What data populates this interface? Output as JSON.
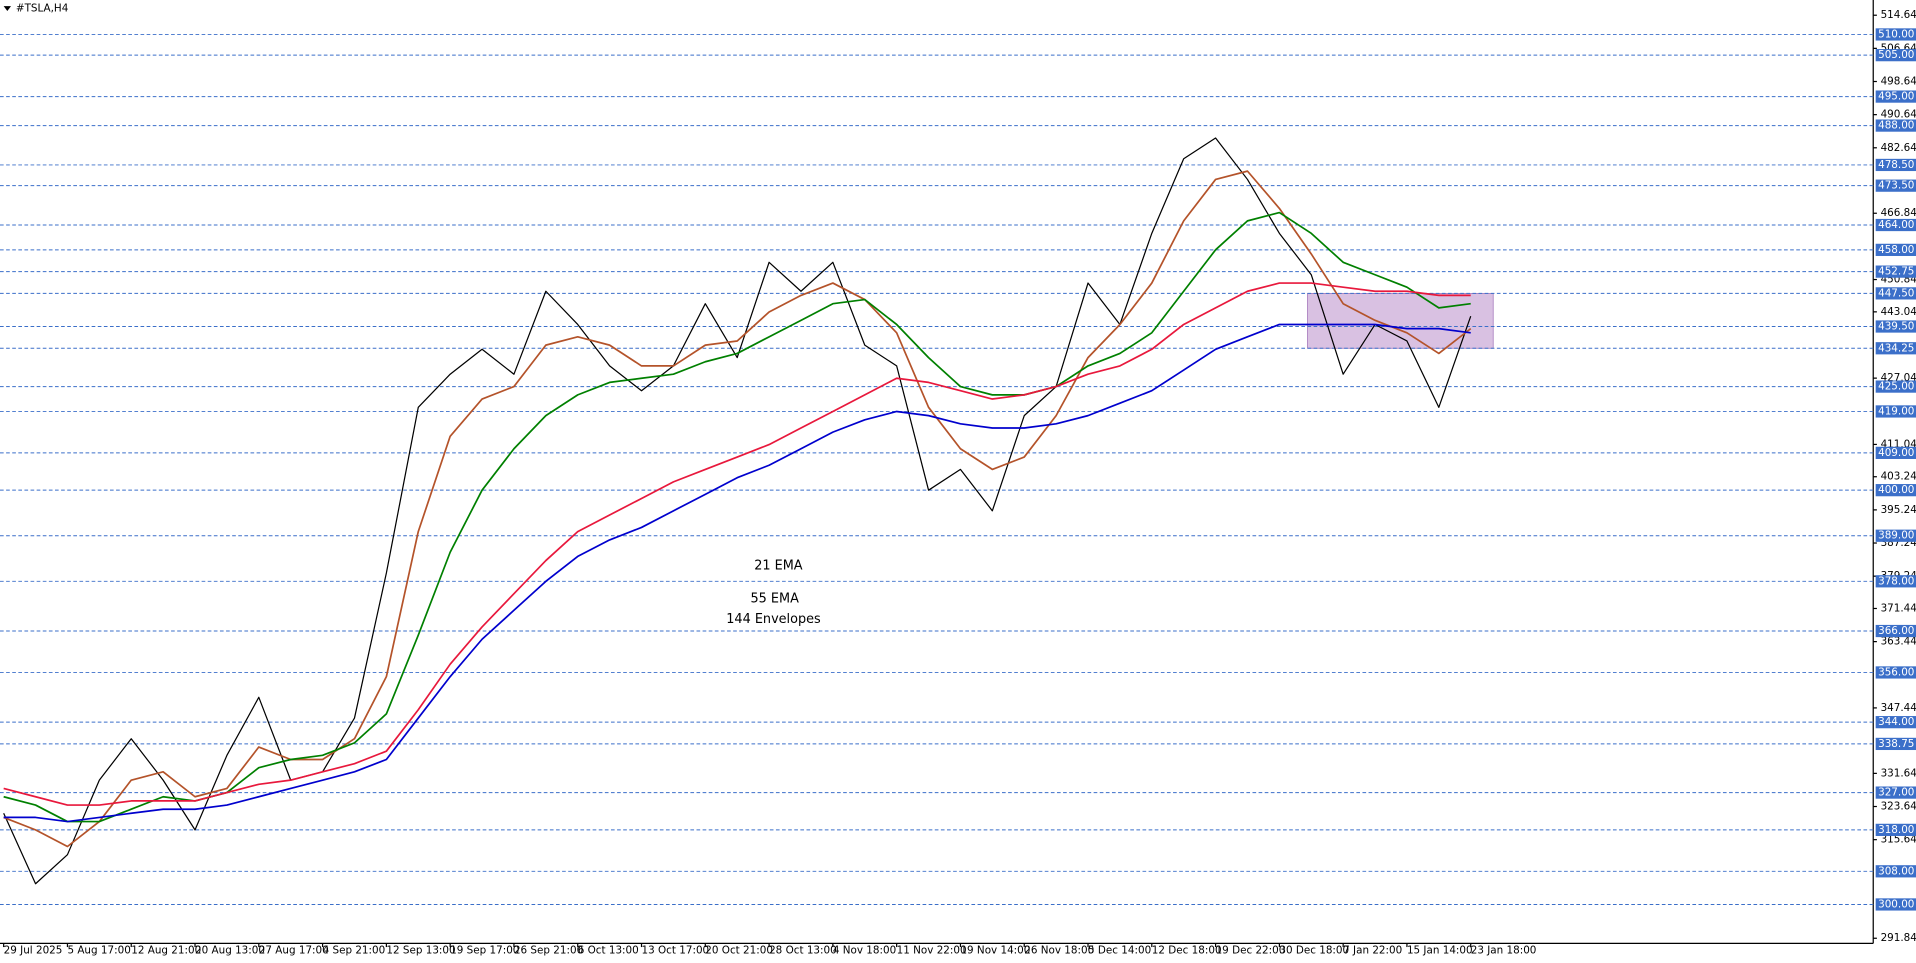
{
  "chart_data": {
    "type": "line",
    "title": "#TSLA,H4",
    "categories": [
      "29 Jul 2025",
      null,
      "5 Aug 17:00",
      null,
      "12 Aug 21:00",
      null,
      "20 Aug 13:00",
      null,
      "27 Aug 17:00",
      null,
      "4 Sep 21:00",
      null,
      "12 Sep 13:00",
      null,
      "19 Sep 17:00",
      null,
      "26 Sep 21:00",
      null,
      "6 Oct 13:00",
      null,
      "13 Oct 17:00",
      null,
      "20 Oct 21:00",
      null,
      "28 Oct 13:00",
      null,
      "4 Nov 18:00",
      null,
      "11 Nov 22:00",
      null,
      "19 Nov 14:00",
      null,
      "26 Nov 18:00",
      null,
      "5 Dec 14:00",
      null,
      "12 Dec 18:00",
      null,
      "19 Dec 22:00",
      null,
      "30 Dec 18:00",
      null,
      "7 Jan 22:00",
      null,
      "15 Jan 14:00",
      null,
      "23 Jan 18:00"
    ],
    "series": [
      {
        "color": "#000000",
        "values": [
          322,
          305,
          312,
          330,
          340,
          330,
          318,
          336,
          350,
          330,
          332,
          345,
          380,
          420,
          428,
          434,
          428,
          448,
          440,
          430,
          424,
          430,
          445,
          432,
          455,
          448,
          455,
          435,
          430,
          400,
          405,
          395,
          418,
          425,
          450,
          440,
          462,
          480,
          485,
          475,
          462,
          452,
          428,
          440,
          436,
          420,
          442
        ]
      },
      {
        "name": "21 EMA",
        "color": "#b4532a",
        "values": [
          321,
          318,
          314,
          320,
          330,
          332,
          326,
          328,
          338,
          335,
          335,
          340,
          355,
          390,
          413,
          422,
          425,
          435,
          437,
          435,
          430,
          430,
          435,
          436,
          443,
          447,
          450,
          446,
          438,
          420,
          410,
          405,
          408,
          418,
          432,
          440,
          450,
          465,
          475,
          477,
          468,
          457,
          445,
          441,
          438,
          433,
          439
        ]
      },
      {
        "name": "55 EMA",
        "color": "#008000",
        "values": [
          326,
          324,
          320,
          320,
          323,
          326,
          325,
          327,
          333,
          335,
          336,
          339,
          346,
          365,
          385,
          400,
          410,
          418,
          423,
          426,
          427,
          428,
          431,
          433,
          437,
          441,
          445,
          446,
          440,
          432,
          425,
          423,
          423,
          425,
          430,
          433,
          438,
          448,
          458,
          465,
          467,
          462,
          455,
          452,
          449,
          444,
          445
        ]
      },
      {
        "name": "144 Envelopes",
        "color": "#e8183c",
        "values": [
          328,
          326,
          324,
          324,
          325,
          325,
          325,
          327,
          329,
          330,
          332,
          334,
          337,
          347,
          358,
          367,
          375,
          383,
          390,
          394,
          398,
          402,
          405,
          408,
          411,
          415,
          419,
          423,
          427,
          426,
          424,
          422,
          423,
          425,
          428,
          430,
          434,
          440,
          444,
          448,
          450,
          450,
          449,
          448,
          448,
          447,
          447
        ]
      },
      {
        "color": "#0000cd",
        "values": [
          321,
          321,
          320,
          321,
          322,
          323,
          323,
          324,
          326,
          328,
          330,
          332,
          335,
          345,
          355,
          364,
          371,
          378,
          384,
          388,
          391,
          395,
          399,
          403,
          406,
          410,
          414,
          417,
          419,
          418,
          416,
          415,
          415,
          416,
          418,
          421,
          424,
          429,
          434,
          437,
          440,
          440,
          440,
          440,
          439,
          439,
          438
        ]
      }
    ],
    "ylim": [
      290.6,
      518.3
    ],
    "yticks": [
      514.64,
      506.64,
      498.64,
      490.64,
      482.64,
      466.84,
      450.84,
      443.04,
      427.04,
      411.04,
      403.24,
      395.24,
      387.24,
      379.24,
      371.44,
      363.44,
      347.44,
      331.64,
      323.64,
      315.64,
      291.84
    ],
    "levels": [
      {
        "value": 510,
        "label": "510.00"
      },
      {
        "value": 505,
        "label": "505.00"
      },
      {
        "value": 495,
        "label": "495.00"
      },
      {
        "value": 488,
        "label": "488.00"
      },
      {
        "value": 478.5,
        "label": "478.50"
      },
      {
        "value": 473.5,
        "label": "473.50"
      },
      {
        "value": 464,
        "label": "464.00"
      },
      {
        "value": 458,
        "label": "458.00"
      },
      {
        "value": 452.75,
        "label": "452.75"
      },
      {
        "value": 447.5,
        "label": "447.50"
      },
      {
        "value": 439.5,
        "label": "439.50"
      },
      {
        "value": 434.25,
        "label": "434.25"
      },
      {
        "value": 425,
        "label": "425.00"
      },
      {
        "value": 419,
        "label": "419.00"
      },
      {
        "value": 409,
        "label": "409.00"
      },
      {
        "value": 400,
        "label": "400.00"
      },
      {
        "value": 389,
        "label": "389.00"
      },
      {
        "value": 378,
        "label": "378.00"
      },
      {
        "value": 366,
        "label": "366.00"
      },
      {
        "value": 356,
        "label": "356.00"
      },
      {
        "value": 344,
        "label": "344.00"
      },
      {
        "value": 338.75,
        "label": "338.75"
      },
      {
        "value": 327,
        "label": "327.00"
      },
      {
        "value": 318,
        "label": "318.00"
      },
      {
        "value": 308,
        "label": "308.00"
      },
      {
        "value": 300,
        "label": "300.00"
      }
    ],
    "zone": [
      434.25,
      447.5
    ],
    "level_color": "#3b6fc9",
    "zone_color": "#c9a6d6",
    "grid": true
  }
}
